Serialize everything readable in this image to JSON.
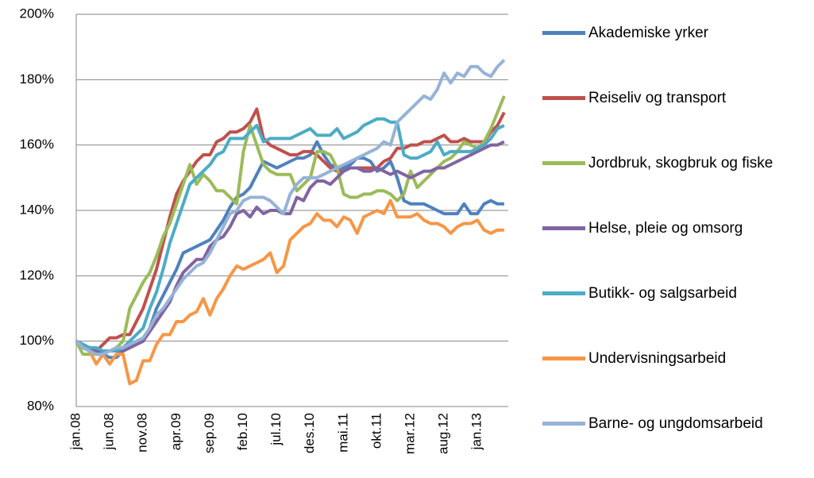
{
  "chart_data": {
    "type": "line",
    "categories": [
      "jan.08",
      null,
      null,
      null,
      null,
      "jun.08",
      null,
      null,
      null,
      null,
      "nov.08",
      null,
      null,
      null,
      null,
      "apr.09",
      null,
      null,
      null,
      null,
      "sep.09",
      null,
      null,
      null,
      null,
      "feb.10",
      null,
      null,
      null,
      null,
      "jul.10",
      null,
      null,
      null,
      null,
      "des.10",
      null,
      null,
      null,
      null,
      "mai.11",
      null,
      null,
      null,
      null,
      "okt.11",
      null,
      null,
      null,
      null,
      "mar.12",
      null,
      null,
      null,
      null,
      "aug.12",
      null,
      null,
      null,
      null,
      "jan.13",
      null,
      null,
      null,
      null
    ],
    "series": [
      {
        "name": "Akademiske yrker",
        "color": "#4F81BD",
        "values": [
          100,
          98,
          97,
          96,
          96,
          95,
          95,
          97,
          98,
          99,
          100,
          104,
          110,
          114,
          118,
          122,
          127,
          128,
          129,
          130,
          131,
          134,
          137,
          141,
          144,
          145,
          147,
          151,
          155,
          154,
          153,
          154,
          155,
          156,
          156,
          157,
          161,
          157,
          154,
          153,
          153,
          154,
          156,
          156,
          155,
          152,
          153,
          155,
          150,
          143,
          142,
          142,
          142,
          141,
          140,
          139,
          139,
          139,
          142,
          139,
          139,
          142,
          143,
          142,
          142
        ]
      },
      {
        "name": "Reiseliv og transport",
        "color": "#C0504D",
        "values": [
          100,
          99,
          98,
          97,
          99,
          101,
          101,
          102,
          102,
          106,
          110,
          116,
          122,
          130,
          138,
          145,
          149,
          152,
          155,
          157,
          157,
          161,
          162,
          164,
          164,
          165,
          167,
          171,
          162,
          160,
          159,
          158,
          157,
          157,
          158,
          158,
          157,
          155,
          153,
          152,
          152,
          153,
          153,
          153,
          153,
          153,
          155,
          156,
          159,
          159,
          160,
          160,
          161,
          161,
          162,
          163,
          161,
          161,
          162,
          161,
          161,
          161,
          164,
          166,
          170
        ]
      },
      {
        "name": "Jordbruk, skogbruk og fiske",
        "color": "#9BBB59",
        "values": [
          100,
          96,
          96,
          96,
          97,
          97,
          98,
          100,
          110,
          114,
          118,
          121,
          126,
          132,
          136,
          142,
          148,
          154,
          148,
          151,
          149,
          146,
          146,
          144,
          142,
          158,
          166,
          160,
          154,
          152,
          151,
          151,
          151,
          146,
          148,
          150,
          158,
          158,
          157,
          153,
          145,
          144,
          144,
          145,
          145,
          146,
          146,
          145,
          143,
          145,
          152,
          147,
          149,
          151,
          153,
          155,
          156,
          158,
          161,
          160,
          159,
          161,
          165,
          170,
          175
        ]
      },
      {
        "name": "Helse, pleie og omsorg",
        "color": "#8064A2",
        "values": [
          100,
          99,
          98,
          97,
          97,
          97,
          97,
          97,
          98,
          99,
          100,
          103,
          106,
          109,
          112,
          117,
          121,
          123,
          125,
          125,
          129,
          131,
          132,
          135,
          139,
          140,
          138,
          141,
          139,
          140,
          140,
          139,
          139,
          144,
          143,
          147,
          149,
          149,
          148,
          150,
          152,
          153,
          153,
          152,
          152,
          153,
          152,
          151,
          152,
          151,
          150,
          151,
          152,
          152,
          153,
          153,
          154,
          155,
          156,
          157,
          158,
          159,
          160,
          160,
          161
        ]
      },
      {
        "name": "Butikk- og salgsarbeid",
        "color": "#4BACC6",
        "values": [
          100,
          99,
          98,
          98,
          97,
          97,
          97,
          98,
          100,
          102,
          104,
          110,
          115,
          122,
          130,
          136,
          142,
          148,
          150,
          152,
          154,
          157,
          158,
          162,
          162,
          162,
          164,
          166,
          161,
          162,
          162,
          162,
          162,
          163,
          164,
          165,
          163,
          163,
          163,
          165,
          162,
          163,
          164,
          166,
          167,
          168,
          168,
          167,
          167,
          157,
          156,
          156,
          157,
          158,
          161,
          157,
          158,
          158,
          158,
          158,
          159,
          160,
          162,
          165,
          166
        ]
      },
      {
        "name": "Undervisningsarbeid",
        "color": "#F79646",
        "values": [
          100,
          98,
          97,
          93,
          96,
          93,
          96,
          96,
          87,
          88,
          94,
          94,
          99,
          102,
          102,
          106,
          106,
          108,
          109,
          113,
          108,
          113,
          116,
          120,
          123,
          122,
          123,
          124,
          125,
          127,
          121,
          123,
          131,
          133,
          135,
          136,
          139,
          137,
          137,
          135,
          138,
          137,
          133,
          138,
          139,
          140,
          139,
          143,
          138,
          138,
          138,
          139,
          137,
          136,
          136,
          135,
          133,
          135,
          136,
          136,
          137,
          134,
          133,
          134,
          134
        ]
      },
      {
        "name": "Barne- og ungdomsarbeid",
        "color": "#95B3D7",
        "values": [
          100,
          98,
          97,
          96,
          96,
          97,
          98,
          98,
          99,
          100,
          101,
          104,
          108,
          110,
          113,
          116,
          119,
          121,
          123,
          124,
          127,
          131,
          135,
          139,
          140,
          143,
          144,
          144,
          144,
          143,
          141,
          139,
          145,
          148,
          150,
          150,
          150,
          151,
          152,
          153,
          154,
          155,
          156,
          157,
          158,
          159,
          161,
          160,
          167,
          169,
          171,
          173,
          175,
          174,
          177,
          182,
          179,
          182,
          181,
          184,
          184,
          182,
          181,
          184,
          186
        ]
      }
    ],
    "ylim": [
      80,
      200
    ],
    "yticks": [
      {
        "value": 80,
        "label": "80%"
      },
      {
        "value": 100,
        "label": "100%"
      },
      {
        "value": 120,
        "label": "120%"
      },
      {
        "value": 140,
        "label": "140%"
      },
      {
        "value": 160,
        "label": "160%"
      },
      {
        "value": 180,
        "label": "180%"
      },
      {
        "value": 200,
        "label": "200%"
      }
    ],
    "grid": true,
    "legend": "right"
  }
}
